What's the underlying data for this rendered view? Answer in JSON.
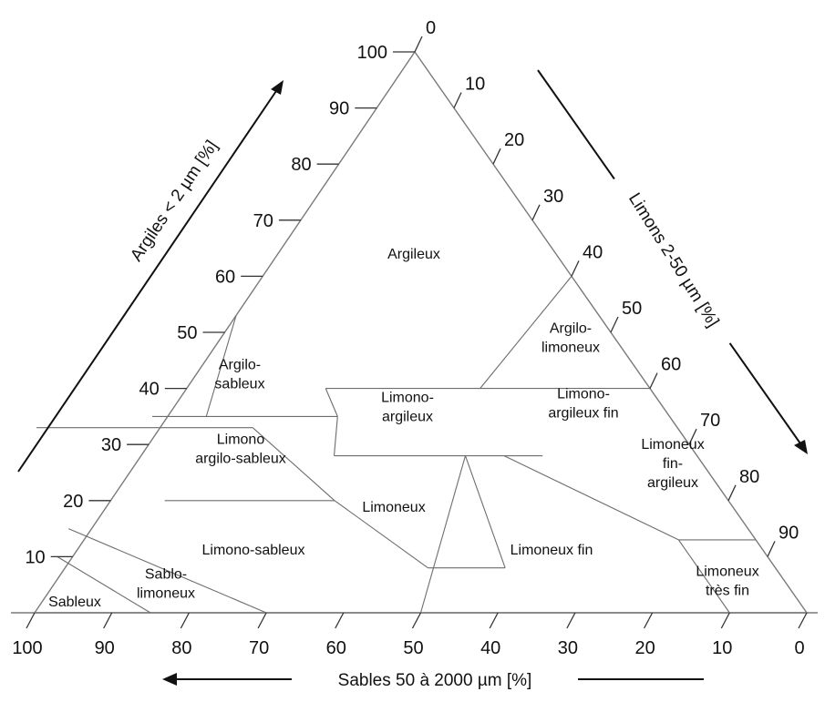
{
  "axes": {
    "left": {
      "title": "Argiles < 2 µm [%]",
      "ticks": [
        "10",
        "20",
        "30",
        "40",
        "50",
        "60",
        "70",
        "80",
        "90",
        "100"
      ]
    },
    "right": {
      "title": "Limons 2-50 µm [%]",
      "ticks": [
        "0",
        "10",
        "20",
        "30",
        "40",
        "50",
        "60",
        "70",
        "80",
        "90"
      ]
    },
    "bottom": {
      "title": "Sables 50 à 2000 µm [%]",
      "ticks": [
        "100",
        "90",
        "80",
        "70",
        "60",
        "50",
        "40",
        "30",
        "20",
        "10",
        "0"
      ]
    }
  },
  "regions": [
    {
      "id": "argileux",
      "lines": [
        "Argileux"
      ]
    },
    {
      "id": "argilo-limoneux",
      "lines": [
        "Argilo-",
        "limoneux"
      ]
    },
    {
      "id": "argilo-sableux",
      "lines": [
        "Argilo-",
        "sableux"
      ]
    },
    {
      "id": "limono-argileux",
      "lines": [
        "Limono-",
        "argileux"
      ]
    },
    {
      "id": "limono-argileux-fin",
      "lines": [
        "Limono-",
        "argileux fin"
      ]
    },
    {
      "id": "limono-argilo-sableux",
      "lines": [
        "Limono",
        "argilo-sableux"
      ]
    },
    {
      "id": "limoneux-fin-argileux",
      "lines": [
        "Limoneux",
        "fin-",
        "argileux"
      ]
    },
    {
      "id": "limoneux",
      "lines": [
        "Limoneux"
      ]
    },
    {
      "id": "limono-sableux",
      "lines": [
        "Limono-sableux"
      ]
    },
    {
      "id": "limoneux-fin",
      "lines": [
        "Limoneux fin"
      ]
    },
    {
      "id": "sableux",
      "lines": [
        "Sableux"
      ]
    },
    {
      "id": "sablo-limoneux",
      "lines": [
        "Sablo-",
        "limoneux"
      ]
    },
    {
      "id": "limoneux-tres-fin",
      "lines": [
        "Limoneux",
        "très fin"
      ]
    }
  ]
}
